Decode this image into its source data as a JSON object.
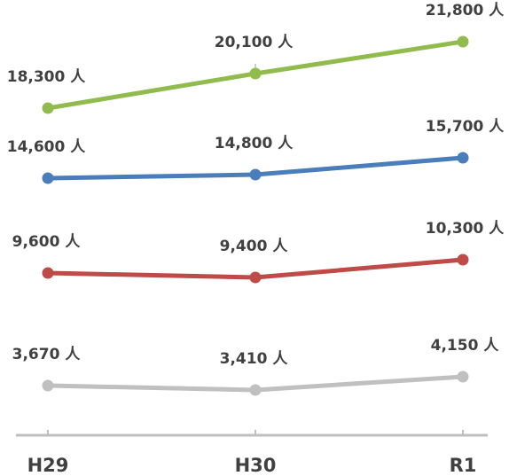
{
  "chart_data": {
    "type": "line",
    "categories": [
      "H29",
      "H30",
      "R1"
    ],
    "series": [
      {
        "values": [
          18300,
          20100,
          21800
        ],
        "labels": [
          "18,300 人",
          "20,100 人",
          "21,800 人"
        ],
        "color": "#92bb4e"
      },
      {
        "values": [
          14600,
          14800,
          15700
        ],
        "labels": [
          "14,600 人",
          "14,800 人",
          "15,700 人"
        ],
        "color": "#4a7ebb"
      },
      {
        "values": [
          9600,
          9400,
          10300
        ],
        "labels": [
          "9,600 人",
          "9,400 人",
          "10,300 人"
        ],
        "color": "#be4b48"
      },
      {
        "values": [
          3670,
          3410,
          4150
        ],
        "labels": [
          "3,670 人",
          "3,410 人",
          "4,150 人"
        ],
        "color": "#c0c0c0"
      }
    ],
    "axis_color": "#bfbfbf",
    "grid": false,
    "legend": "none"
  }
}
